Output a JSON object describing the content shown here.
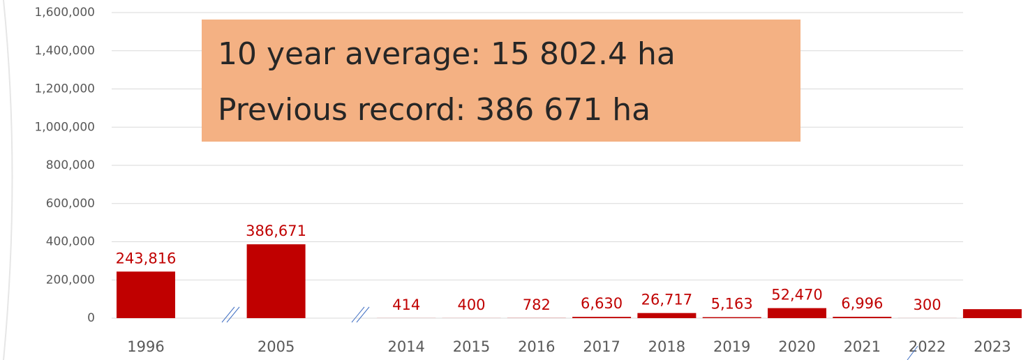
{
  "chart_data": {
    "type": "bar",
    "annotation": [
      "10 year average: 15 802.4 ha",
      "Previous record: 386 671 ha"
    ],
    "categories": [
      "1996",
      null,
      "2005",
      null,
      "2014",
      "2015",
      "2016",
      "2017",
      "2018",
      "2019",
      "2020",
      "2021",
      "2022",
      "2023"
    ],
    "values": [
      243816,
      null,
      386671,
      null,
      414,
      400,
      782,
      6630,
      26717,
      5163,
      52470,
      6996,
      300,
      47000
    ],
    "value_labels": [
      "243,816",
      null,
      "386,671",
      null,
      "414",
      "400",
      "782",
      "6,630",
      "26,717",
      "5,163",
      "52,470",
      "6,996",
      "300",
      null
    ],
    "color": "#c00000",
    "ylim": [
      0,
      1600000
    ],
    "yticks": [
      0,
      {
        "value": 200000,
        "label": "200,000"
      },
      {
        "value": 400000,
        "label": "400,000"
      },
      {
        "value": 600000,
        "label": "600,000"
      },
      {
        "value": 800000,
        "label": "800,000"
      },
      {
        "value": 1000000,
        "label": "1,000,000"
      },
      {
        "value": 1200000,
        "label": "1,200,000"
      },
      {
        "value": 1400000,
        "label": "1,400,000"
      },
      {
        "value": 1600000,
        "label": "1,600,000"
      }
    ],
    "grid": true
  }
}
